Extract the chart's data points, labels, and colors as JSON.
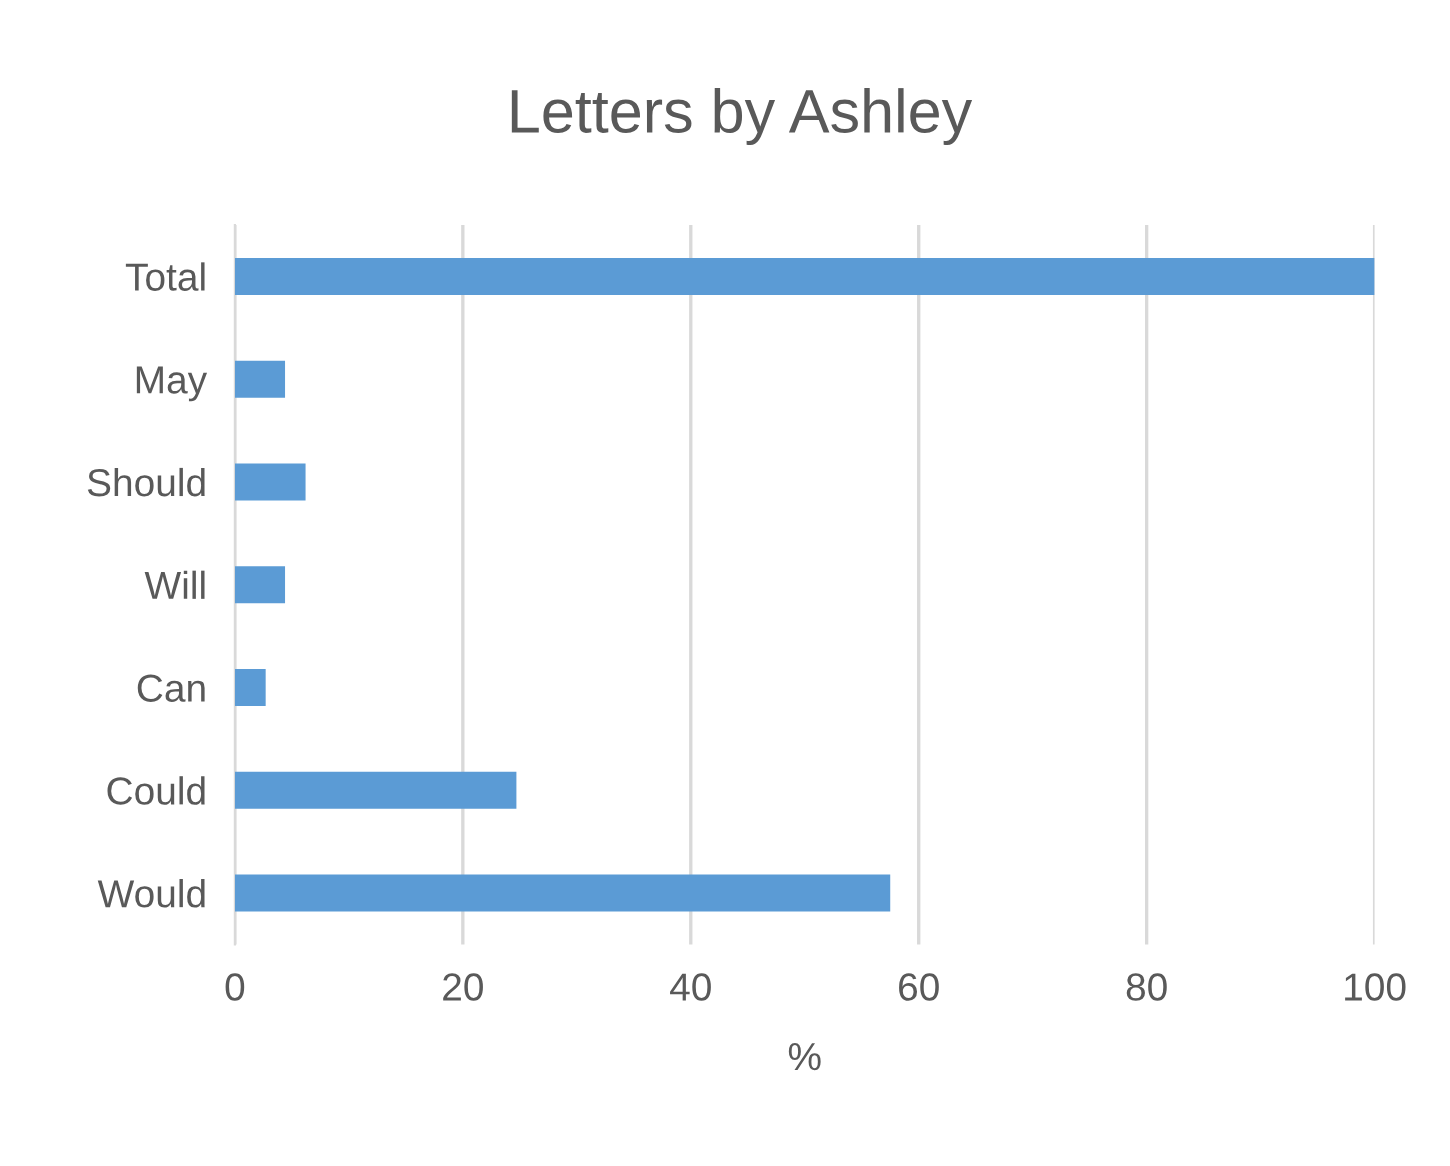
{
  "chart_data": {
    "type": "bar",
    "orientation": "horizontal",
    "title": "Letters by Ashley",
    "xlabel": "%",
    "categories": [
      "Total",
      "May",
      "Should",
      "Will",
      "Can",
      "Could",
      "Would"
    ],
    "values": [
      100,
      4.4,
      6.2,
      4.4,
      2.7,
      24.7,
      57.5
    ],
    "color": "#5b9bd5",
    "xlim": [
      0,
      100
    ],
    "xticks": [
      0,
      20,
      40,
      60,
      80,
      100
    ],
    "grid": "x"
  }
}
